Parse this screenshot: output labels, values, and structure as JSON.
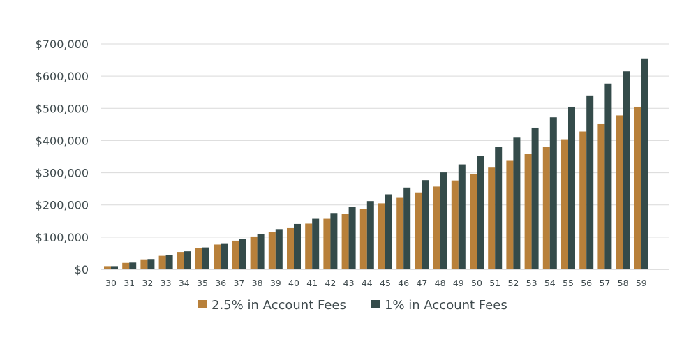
{
  "chart_data": {
    "type": "bar",
    "title": "",
    "xlabel": "",
    "ylabel": "",
    "ylim": [
      0,
      700000
    ],
    "yticks": [
      0,
      100000,
      200000,
      300000,
      400000,
      500000,
      600000,
      700000
    ],
    "ytick_labels": [
      "$0",
      "$100,000",
      "$200,000",
      "$300,000",
      "$400,000",
      "$500,000",
      "$600,000",
      "$700,000"
    ],
    "grid": true,
    "legend_position": "bottom",
    "categories": [
      "30",
      "31",
      "32",
      "33",
      "34",
      "35",
      "36",
      "37",
      "38",
      "39",
      "40",
      "41",
      "42",
      "43",
      "44",
      "45",
      "46",
      "47",
      "48",
      "49",
      "50",
      "51",
      "52",
      "53",
      "54",
      "55",
      "56",
      "57",
      "58",
      "59"
    ],
    "series": [
      {
        "name": "2.5% in Account Fees",
        "color": "#b8803a",
        "values": [
          10000,
          20000,
          31000,
          42000,
          54000,
          65000,
          77000,
          89000,
          102000,
          115000,
          128000,
          142000,
          157000,
          172000,
          188000,
          205000,
          222000,
          239000,
          257000,
          276000,
          296000,
          316000,
          337000,
          359000,
          381000,
          404000,
          428000,
          453000,
          478000,
          505000
        ]
      },
      {
        "name": "1% in Account Fees",
        "color": "#344b4a",
        "values": [
          10000,
          21000,
          32000,
          44000,
          56000,
          68000,
          81000,
          95000,
          110000,
          125000,
          141000,
          157000,
          175000,
          193000,
          212000,
          233000,
          254000,
          277000,
          301000,
          326000,
          352000,
          380000,
          409000,
          440000,
          472000,
          505000,
          540000,
          577000,
          615000,
          655000
        ]
      }
    ]
  }
}
